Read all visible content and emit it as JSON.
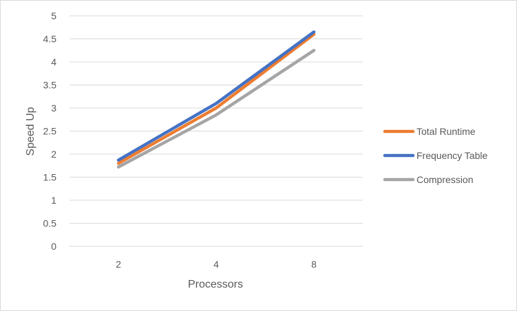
{
  "chart_data": {
    "type": "line",
    "categories": [
      "2",
      "4",
      "8"
    ],
    "xlabel": "Processors",
    "ylabel": "Speed Up",
    "ylim": [
      0,
      5
    ],
    "yticks": [
      "0",
      "0.5",
      "1",
      "1.5",
      "2",
      "2.5",
      "3",
      "3.5",
      "4",
      "4.5",
      "5"
    ],
    "grid": true,
    "legend_position": "right",
    "series": [
      {
        "name": "Total Runtime",
        "values": [
          1.8,
          3.0,
          4.6
        ],
        "color": "#ED7D31"
      },
      {
        "name": "Frequency Table",
        "values": [
          1.87,
          3.1,
          4.65
        ],
        "color": "#4472C4"
      },
      {
        "name": "Compression",
        "values": [
          1.72,
          2.85,
          4.25
        ],
        "color": "#A5A5A5"
      }
    ]
  }
}
